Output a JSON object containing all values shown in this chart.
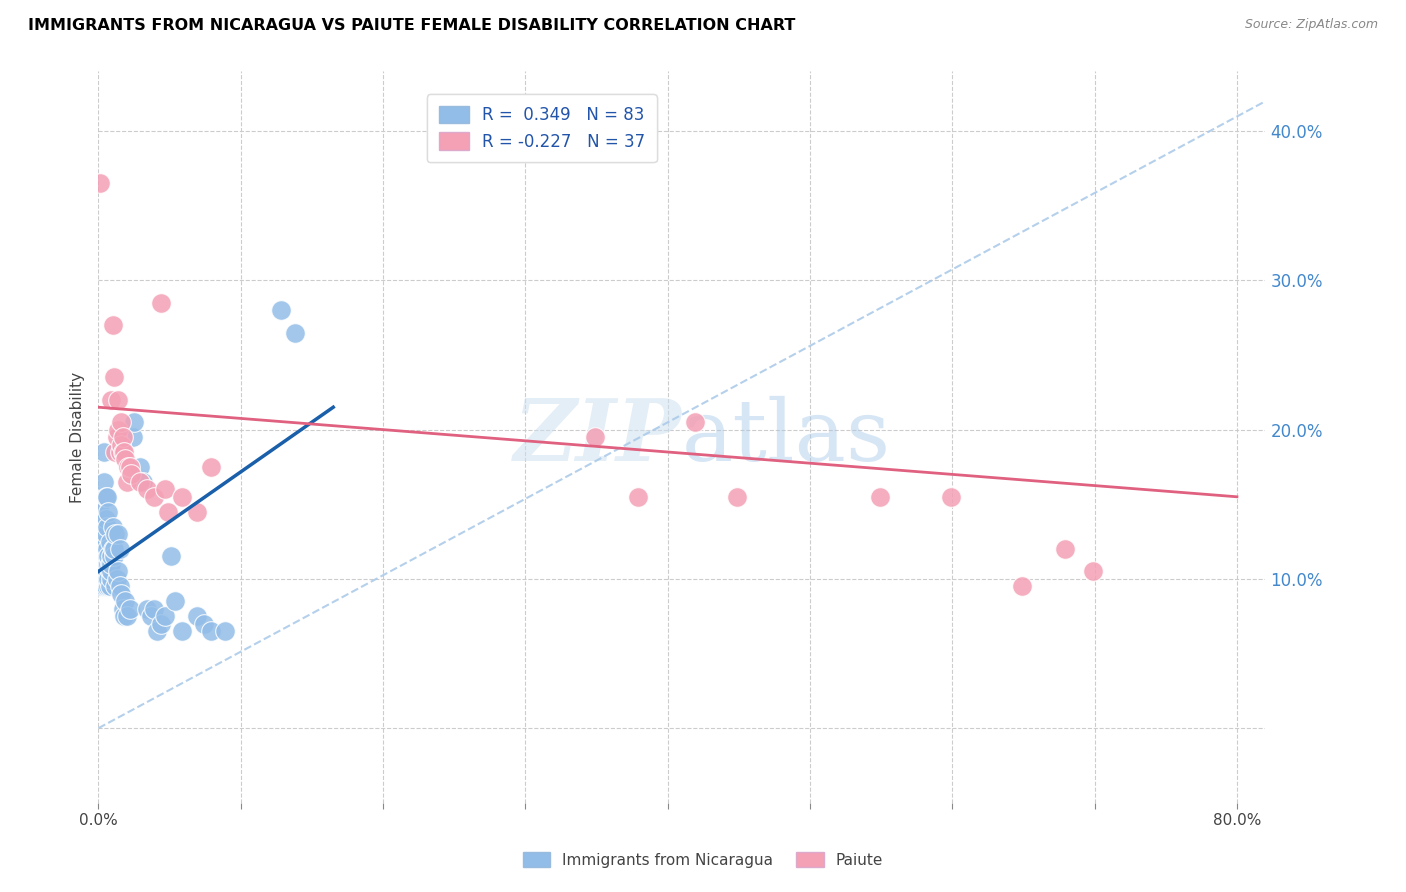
{
  "title": "IMMIGRANTS FROM NICARAGUA VS PAIUTE FEMALE DISABILITY CORRELATION CHART",
  "source": "Source: ZipAtlas.com",
  "ylabel": "Female Disability",
  "y_ticks": [
    0.0,
    0.1,
    0.2,
    0.3,
    0.4
  ],
  "y_tick_labels": [
    "",
    "10.0%",
    "20.0%",
    "30.0%",
    "40.0%"
  ],
  "xlim": [
    0.0,
    0.82
  ],
  "ylim": [
    -0.05,
    0.44
  ],
  "legend_r1": "R =  0.349",
  "legend_n1": "N = 83",
  "legend_r2": "R = -0.227",
  "legend_n2": "N = 37",
  "color_blue": "#92BDE8",
  "color_pink": "#F4A0B5",
  "trendline_blue_color": "#1a5faa",
  "trendline_pink_color": "#e06080",
  "trendline_dashed_color": "#a8c8e8",
  "watermark_zip": "ZIP",
  "watermark_atlas": "atlas",
  "blue_scatter": [
    [
      0.001,
      0.145
    ],
    [
      0.002,
      0.095
    ],
    [
      0.002,
      0.125
    ],
    [
      0.002,
      0.13
    ],
    [
      0.003,
      0.105
    ],
    [
      0.003,
      0.115
    ],
    [
      0.003,
      0.12
    ],
    [
      0.003,
      0.135
    ],
    [
      0.004,
      0.095
    ],
    [
      0.004,
      0.1
    ],
    [
      0.004,
      0.105
    ],
    [
      0.004,
      0.11
    ],
    [
      0.004,
      0.115
    ],
    [
      0.004,
      0.12
    ],
    [
      0.004,
      0.125
    ],
    [
      0.004,
      0.165
    ],
    [
      0.004,
      0.185
    ],
    [
      0.005,
      0.095
    ],
    [
      0.005,
      0.1
    ],
    [
      0.005,
      0.105
    ],
    [
      0.005,
      0.11
    ],
    [
      0.005,
      0.115
    ],
    [
      0.005,
      0.12
    ],
    [
      0.005,
      0.125
    ],
    [
      0.005,
      0.13
    ],
    [
      0.005,
      0.14
    ],
    [
      0.005,
      0.155
    ],
    [
      0.006,
      0.1
    ],
    [
      0.006,
      0.105
    ],
    [
      0.006,
      0.11
    ],
    [
      0.006,
      0.115
    ],
    [
      0.006,
      0.12
    ],
    [
      0.006,
      0.135
    ],
    [
      0.006,
      0.155
    ],
    [
      0.007,
      0.095
    ],
    [
      0.007,
      0.1
    ],
    [
      0.007,
      0.11
    ],
    [
      0.007,
      0.115
    ],
    [
      0.007,
      0.145
    ],
    [
      0.008,
      0.095
    ],
    [
      0.008,
      0.105
    ],
    [
      0.008,
      0.11
    ],
    [
      0.008,
      0.125
    ],
    [
      0.009,
      0.1
    ],
    [
      0.009,
      0.105
    ],
    [
      0.009,
      0.11
    ],
    [
      0.009,
      0.115
    ],
    [
      0.01,
      0.12
    ],
    [
      0.01,
      0.135
    ],
    [
      0.011,
      0.115
    ],
    [
      0.011,
      0.12
    ],
    [
      0.012,
      0.095
    ],
    [
      0.012,
      0.13
    ],
    [
      0.013,
      0.1
    ],
    [
      0.014,
      0.105
    ],
    [
      0.014,
      0.13
    ],
    [
      0.015,
      0.095
    ],
    [
      0.015,
      0.12
    ],
    [
      0.016,
      0.09
    ],
    [
      0.017,
      0.08
    ],
    [
      0.018,
      0.075
    ],
    [
      0.019,
      0.085
    ],
    [
      0.02,
      0.075
    ],
    [
      0.022,
      0.08
    ],
    [
      0.024,
      0.195
    ],
    [
      0.025,
      0.205
    ],
    [
      0.029,
      0.175
    ],
    [
      0.031,
      0.165
    ],
    [
      0.034,
      0.08
    ],
    [
      0.037,
      0.075
    ],
    [
      0.039,
      0.08
    ],
    [
      0.041,
      0.065
    ],
    [
      0.044,
      0.07
    ],
    [
      0.047,
      0.075
    ],
    [
      0.051,
      0.115
    ],
    [
      0.054,
      0.085
    ],
    [
      0.059,
      0.065
    ],
    [
      0.069,
      0.075
    ],
    [
      0.074,
      0.07
    ],
    [
      0.079,
      0.065
    ],
    [
      0.089,
      0.065
    ],
    [
      0.128,
      0.28
    ],
    [
      0.138,
      0.265
    ]
  ],
  "pink_scatter": [
    [
      0.001,
      0.365
    ],
    [
      0.009,
      0.22
    ],
    [
      0.01,
      0.27
    ],
    [
      0.011,
      0.235
    ],
    [
      0.012,
      0.185
    ],
    [
      0.013,
      0.195
    ],
    [
      0.014,
      0.2
    ],
    [
      0.014,
      0.22
    ],
    [
      0.015,
      0.185
    ],
    [
      0.016,
      0.19
    ],
    [
      0.016,
      0.205
    ],
    [
      0.017,
      0.185
    ],
    [
      0.017,
      0.195
    ],
    [
      0.018,
      0.185
    ],
    [
      0.019,
      0.18
    ],
    [
      0.02,
      0.165
    ],
    [
      0.021,
      0.175
    ],
    [
      0.022,
      0.175
    ],
    [
      0.023,
      0.17
    ],
    [
      0.029,
      0.165
    ],
    [
      0.034,
      0.16
    ],
    [
      0.039,
      0.155
    ],
    [
      0.044,
      0.285
    ],
    [
      0.047,
      0.16
    ],
    [
      0.049,
      0.145
    ],
    [
      0.059,
      0.155
    ],
    [
      0.069,
      0.145
    ],
    [
      0.079,
      0.175
    ],
    [
      0.349,
      0.195
    ],
    [
      0.379,
      0.155
    ],
    [
      0.419,
      0.205
    ],
    [
      0.449,
      0.155
    ],
    [
      0.549,
      0.155
    ],
    [
      0.599,
      0.155
    ],
    [
      0.649,
      0.095
    ],
    [
      0.679,
      0.12
    ],
    [
      0.699,
      0.105
    ]
  ],
  "blue_trend_x": [
    0.0,
    0.165
  ],
  "blue_trend_y": [
    0.105,
    0.215
  ],
  "pink_trend_x": [
    0.0,
    0.8
  ],
  "pink_trend_y": [
    0.215,
    0.155
  ],
  "dashed_trend_x": [
    0.0,
    0.82
  ],
  "dashed_trend_y": [
    0.0,
    0.42
  ]
}
